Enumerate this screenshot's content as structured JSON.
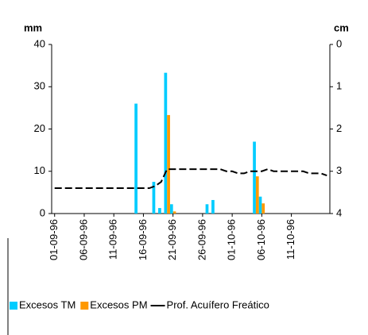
{
  "chart_data": {
    "type": "bar-line",
    "y_label": "mm",
    "y2_label": "cm",
    "categories": [
      "01-09-96",
      null,
      null,
      null,
      null,
      "06-09-96",
      null,
      null,
      null,
      null,
      "11-09-96",
      null,
      null,
      null,
      null,
      "16-09-96",
      null,
      null,
      null,
      null,
      "21-09-96",
      null,
      null,
      null,
      null,
      "26-09-96",
      null,
      null,
      null,
      null,
      "01-10-96",
      null,
      null,
      null,
      null,
      "06-10-96",
      null,
      null,
      null,
      null,
      "11-10-96",
      null,
      null,
      null,
      null,
      null,
      null
    ],
    "series": [
      {
        "name": "Excesos TM",
        "type": "bar",
        "color": "#00ccff",
        "values": [
          0,
          0,
          0,
          0,
          0,
          0,
          0,
          0,
          0,
          0,
          0,
          0,
          0,
          0,
          26,
          0,
          0,
          7.5,
          1.3,
          33.3,
          2.2,
          0,
          0,
          0,
          0,
          0,
          2.2,
          3.2,
          0,
          0,
          0,
          0,
          0,
          0,
          17,
          4,
          0,
          0,
          0,
          0,
          0,
          0,
          0,
          0,
          0,
          0,
          0
        ]
      },
      {
        "name": "Excesos PM",
        "type": "bar",
        "color": "#ff9900",
        "values": [
          0,
          0,
          0,
          0,
          0,
          0,
          0,
          0,
          0,
          0,
          0,
          0,
          0,
          0,
          0,
          0,
          0,
          0,
          0,
          23.3,
          0.5,
          0,
          0,
          0,
          0,
          0,
          0,
          0,
          0,
          0,
          0,
          0,
          0,
          0,
          8.8,
          2.4,
          0,
          0,
          0,
          0,
          0,
          0,
          0,
          0,
          0,
          0,
          0
        ]
      },
      {
        "name": "Prof. Acuífero Freático",
        "type": "line",
        "axis": "y2",
        "color": "#000000",
        "dashed": true,
        "values": [
          3.4,
          3.4,
          3.4,
          3.4,
          3.4,
          3.4,
          3.4,
          3.4,
          3.4,
          3.4,
          3.4,
          3.4,
          3.4,
          3.4,
          3.4,
          3.4,
          3.4,
          3.35,
          3.25,
          2.95,
          2.95,
          2.95,
          2.95,
          2.95,
          2.95,
          2.95,
          2.95,
          2.95,
          2.95,
          3.0,
          3.0,
          3.05,
          3.05,
          3.0,
          3.0,
          3.0,
          2.95,
          3.0,
          3.0,
          3.0,
          3.0,
          3.0,
          3.0,
          3.05,
          3.05,
          3.05,
          3.1
        ]
      }
    ],
    "ylim": [
      0,
      40
    ],
    "yticks": [
      0,
      10,
      20,
      30,
      40
    ],
    "y2lim": [
      4,
      0
    ],
    "y2ticks": [
      0,
      1,
      2,
      3,
      4
    ]
  }
}
